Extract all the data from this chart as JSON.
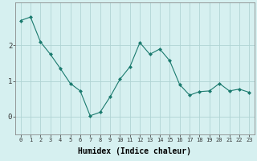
{
  "x": [
    0,
    1,
    2,
    3,
    4,
    5,
    6,
    7,
    8,
    9,
    10,
    11,
    12,
    13,
    14,
    15,
    16,
    17,
    18,
    19,
    20,
    21,
    22,
    23
  ],
  "y": [
    2.7,
    2.8,
    2.1,
    1.75,
    1.35,
    0.93,
    0.72,
    0.02,
    0.12,
    0.55,
    1.05,
    1.4,
    2.08,
    1.75,
    1.9,
    1.57,
    0.9,
    0.6,
    0.7,
    0.72,
    0.93,
    0.72,
    0.77,
    0.68
  ],
  "line_color": "#1a7a6e",
  "marker": "D",
  "marker_size": 2.0,
  "bg_color": "#d6f0f0",
  "grid_color": "#b0d4d4",
  "xlabel": "Humidex (Indice chaleur)",
  "ylim": [
    -0.5,
    3.2
  ],
  "xlim": [
    -0.5,
    23.5
  ],
  "yticks": [
    0,
    1,
    2
  ],
  "xticks": [
    0,
    1,
    2,
    3,
    4,
    5,
    6,
    7,
    8,
    9,
    10,
    11,
    12,
    13,
    14,
    15,
    16,
    17,
    18,
    19,
    20,
    21,
    22,
    23
  ],
  "xtick_fontsize": 5.0,
  "ytick_fontsize": 6.5,
  "xlabel_fontsize": 7.0,
  "linewidth": 0.8,
  "spine_color": "#888888"
}
